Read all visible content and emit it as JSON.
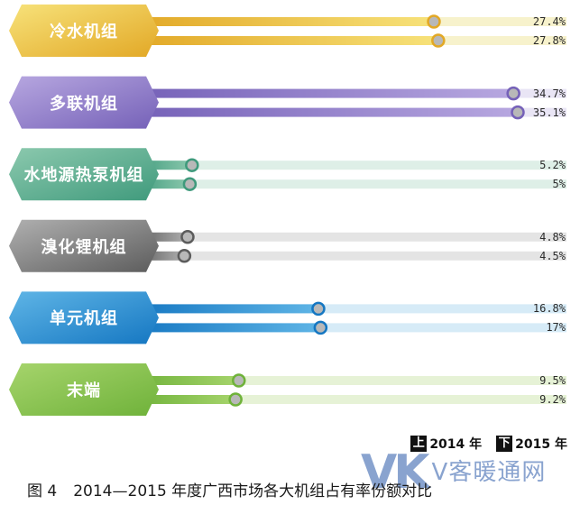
{
  "chart_data": {
    "type": "bar",
    "orientation": "horizontal",
    "categories": [
      "冷水机组",
      "多联机组",
      "水地源热泵机组",
      "溴化锂机组",
      "单元机组",
      "末端"
    ],
    "series": [
      {
        "name": "2014 年",
        "values": [
          27.4,
          34.7,
          5.2,
          4.8,
          16.8,
          9.5
        ],
        "labels": [
          "27.4%",
          "34.7%",
          "5.2%",
          "4.8%",
          "16.8%",
          "9.5%"
        ]
      },
      {
        "name": "2015 年",
        "values": [
          27.8,
          35.1,
          5,
          4.5,
          17,
          9.2
        ],
        "labels": [
          "27.8%",
          "35.1%",
          "5%",
          "4.5%",
          "17%",
          "9.2%"
        ]
      }
    ],
    "colors": [
      {
        "dark": "#e2a826",
        "light": "#f7e27a",
        "track": "#f7f2cc"
      },
      {
        "dark": "#7561b8",
        "light": "#b7a7e0",
        "track": "#e9e5f5"
      },
      {
        "dark": "#3f9a7c",
        "light": "#8cc9ae",
        "track": "#deefe7"
      },
      {
        "dark": "#5c5c5c",
        "light": "#b0b0b0",
        "track": "#e4e4e4"
      },
      {
        "dark": "#1577c2",
        "light": "#5fb5e6",
        "track": "#d6ebf7"
      },
      {
        "dark": "#6fb23a",
        "light": "#a6d46c",
        "track": "#e6f2d6"
      }
    ],
    "legend": {
      "position": "bottom-right",
      "items": [
        {
          "key": "上",
          "label": "2014 年"
        },
        {
          "key": "下",
          "label": "2015 年"
        }
      ]
    },
    "xlim": [
      0,
      35.1
    ],
    "grid": false
  },
  "caption": {
    "figure": "图 4",
    "text": "2014—2015 年度广西市场各大机组占有率份额对比"
  },
  "watermark": {
    "logo": "VK",
    "text": "V客暖通网"
  }
}
